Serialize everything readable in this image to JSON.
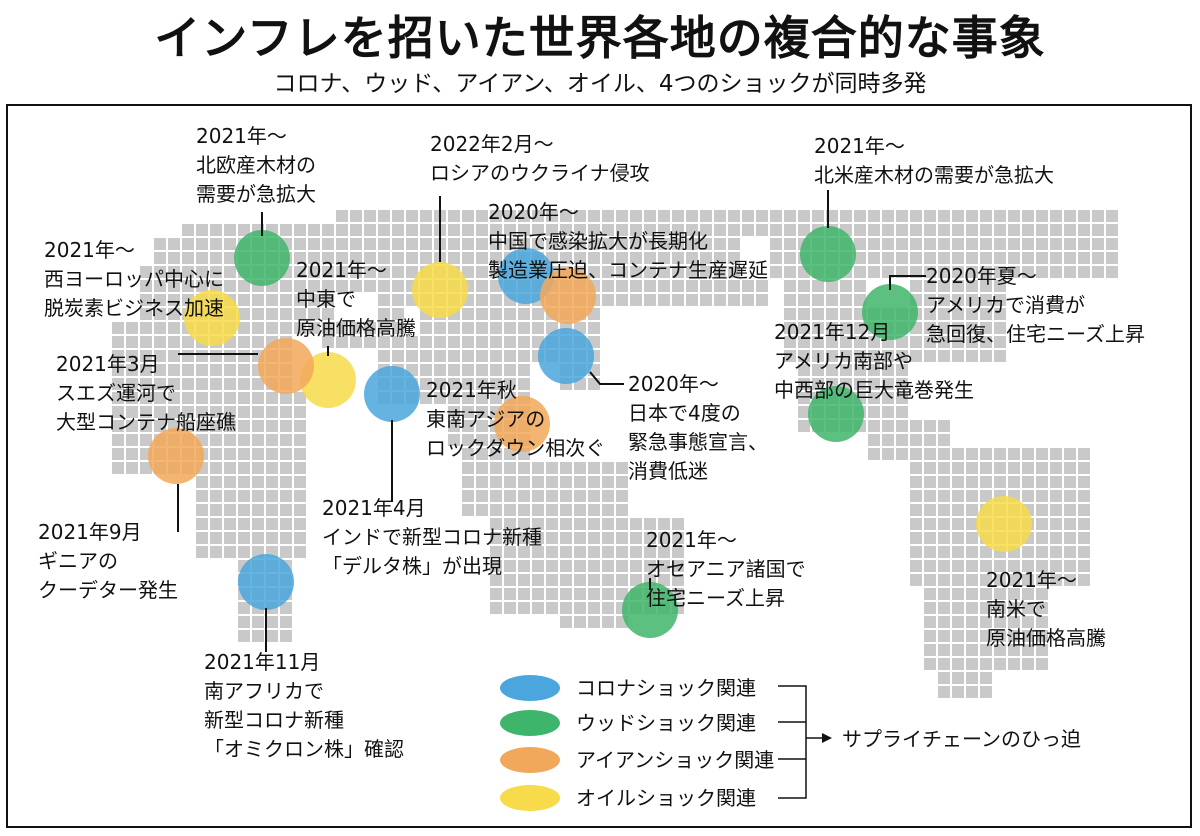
{
  "title": "インフレを招いた世界各地の複合的な事象",
  "subtitle": "コロナ、ウッド、アイアン、オイル、4つのショックが同時多発",
  "colors": {
    "corona": "#4aa6dc",
    "wood": "#3fb56b",
    "iron": "#f2a85a",
    "oil": "#f7db4a",
    "land": "#c9c9c9"
  },
  "events": [
    {
      "id": "nordic-wood",
      "type": "wood",
      "lines": [
        "2021年～",
        "北欧産木材の",
        "需要が急拡大"
      ]
    },
    {
      "id": "russia",
      "type": "oil",
      "lines": [
        "2022年2月～",
        "ロシアのウクライナ侵攻"
      ]
    },
    {
      "id": "us-wood",
      "type": "wood",
      "lines": [
        "2021年～",
        "北米産木材の需要が急拡大"
      ]
    },
    {
      "id": "china",
      "type": "corona",
      "lines": [
        "2020年～",
        "中国で感染拡大が長期化",
        "製造業圧迫、コンテナ生産遅延"
      ]
    },
    {
      "id": "europe",
      "type": "oil",
      "lines": [
        "2021年～",
        "西ヨーロッパ中心に",
        "脱炭素ビジネス加速"
      ]
    },
    {
      "id": "mideast",
      "type": "oil",
      "lines": [
        "2021年～",
        "中東で",
        "原油価格高騰"
      ]
    },
    {
      "id": "us-consumption",
      "type": "wood",
      "lines": [
        "2020年夏～",
        "アメリカで消費が",
        "急回復、住宅ニーズ上昇"
      ]
    },
    {
      "id": "suez",
      "type": "iron",
      "lines": [
        "2021年3月",
        "スエズ運河で",
        "大型コンテナ船座礁"
      ]
    },
    {
      "id": "us-tornado",
      "type": "wood",
      "lines": [
        "2021年12月",
        "アメリカ南部や",
        "中西部の巨大竜巻発生"
      ]
    },
    {
      "id": "sea",
      "type": "iron",
      "lines": [
        "2021年秋",
        "東南アジアの",
        "ロックダウン相次ぐ"
      ]
    },
    {
      "id": "japan",
      "type": "corona",
      "lines": [
        "2020年～",
        "日本で4度の",
        "緊急事態宣言、",
        "消費低迷"
      ]
    },
    {
      "id": "guinea",
      "type": "iron",
      "lines": [
        "2021年9月",
        "ギニアの",
        "クーデター発生"
      ]
    },
    {
      "id": "india",
      "type": "corona",
      "lines": [
        "2021年4月",
        "インドで新型コロナ新種",
        "「デルタ株」が出現"
      ]
    },
    {
      "id": "oceania",
      "type": "wood",
      "lines": [
        "2021年～",
        "オセアニア諸国で",
        "住宅ニーズ上昇"
      ]
    },
    {
      "id": "south-america",
      "type": "oil",
      "lines": [
        "2021年～",
        "南米で",
        "原油価格高騰"
      ]
    },
    {
      "id": "south-africa",
      "type": "corona",
      "lines": [
        "2021年11月",
        "南アフリカで",
        "新型コロナ新種",
        "「オミクロン株」確認"
      ]
    }
  ],
  "legend": [
    {
      "type": "corona",
      "label": "コロナショック関連"
    },
    {
      "type": "wood",
      "label": "ウッドショック関連"
    },
    {
      "type": "iron",
      "label": "アイアンショック関連"
    },
    {
      "type": "oil",
      "label": "オイルショック関連"
    }
  ],
  "supply_label": "サプライチェーンのひっ迫"
}
